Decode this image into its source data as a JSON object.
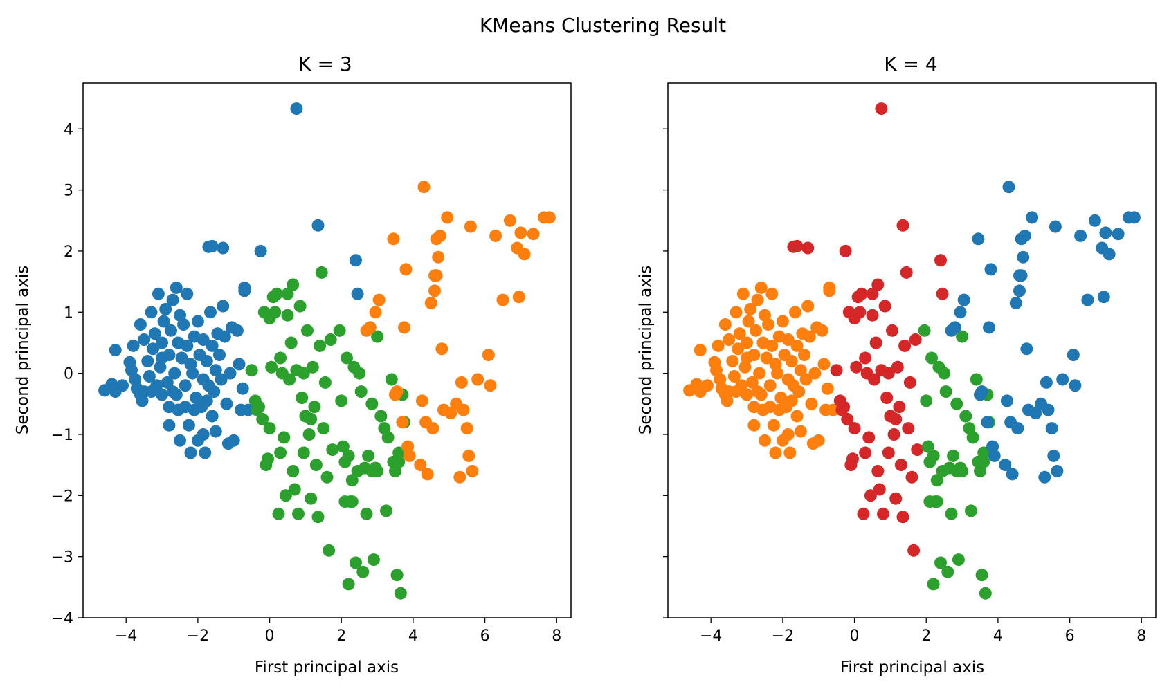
{
  "chart_data": {
    "type": "scatter",
    "title": "KMeans Clustering Result",
    "colors": {
      "C0": "#1f77b4",
      "C1": "#ff7f0e",
      "C2": "#2ca02c",
      "C3": "#d62728"
    },
    "xlim": [
      -5.2,
      8.4
    ],
    "ylim": [
      -4,
      4.75
    ],
    "xticks": [
      -4,
      -2,
      0,
      2,
      4,
      6,
      8
    ],
    "yticks": [
      -4,
      -3,
      -2,
      -1,
      0,
      1,
      2,
      3,
      4
    ],
    "xticklabels": [
      "−4",
      "−2",
      "0",
      "2",
      "4",
      "6",
      "8"
    ],
    "yticklabels": [
      "−4",
      "−3",
      "−2",
      "−1",
      "0",
      "1",
      "2",
      "3",
      "4"
    ],
    "xlabel": "First principal axis",
    "ylabel": "Second principal axis",
    "points": [
      [
        -4.6,
        -0.28,
        0,
        1
      ],
      [
        -4.4,
        -0.18,
        0,
        1
      ],
      [
        -4.3,
        -0.3,
        0,
        1
      ],
      [
        -4.3,
        0.38,
        0,
        1
      ],
      [
        -4.1,
        -0.2,
        0,
        1
      ],
      [
        -3.9,
        0.18,
        0,
        1
      ],
      [
        -3.85,
        0.05,
        0,
        1
      ],
      [
        -3.8,
        0.45,
        0,
        1
      ],
      [
        -3.75,
        -0.1,
        0,
        1
      ],
      [
        -3.7,
        -0.25,
        0,
        1
      ],
      [
        -3.6,
        0.8,
        0,
        1
      ],
      [
        -3.55,
        -0.45,
        0,
        1
      ],
      [
        -3.5,
        -0.3,
        0,
        1
      ],
      [
        -3.5,
        0.55,
        0,
        1
      ],
      [
        -3.4,
        0.2,
        0,
        1
      ],
      [
        -3.35,
        -0.05,
        0,
        1
      ],
      [
        -3.3,
        1.0,
        0,
        1
      ],
      [
        -3.25,
        0.4,
        0,
        1
      ],
      [
        -3.2,
        0.65,
        0,
        1
      ],
      [
        -3.15,
        -0.2,
        0,
        1
      ],
      [
        -3.1,
        1.3,
        0,
        1
      ],
      [
        -3.05,
        0.1,
        0,
        1
      ],
      [
        -3.0,
        0.5,
        0,
        1
      ],
      [
        -3.0,
        -0.35,
        0,
        1
      ],
      [
        -2.95,
        0.85,
        0,
        1
      ],
      [
        -2.9,
        1.05,
        0,
        1
      ],
      [
        -2.85,
        -0.15,
        0,
        1
      ],
      [
        -2.8,
        0.3,
        0,
        1
      ],
      [
        -2.8,
        -0.85,
        0,
        1
      ],
      [
        -2.75,
        0.7,
        0,
        1
      ],
      [
        -2.7,
        -0.3,
        0,
        1
      ],
      [
        -2.7,
        1.2,
        0,
        1
      ],
      [
        -2.65,
        0.0,
        0,
        1
      ],
      [
        -2.6,
        1.4,
        0,
        1
      ],
      [
        -2.55,
        0.5,
        0,
        1
      ],
      [
        -2.55,
        -0.6,
        0,
        1
      ],
      [
        -2.5,
        0.95,
        0,
        1
      ],
      [
        -2.5,
        -1.1,
        0,
        1
      ],
      [
        -2.45,
        0.25,
        0,
        1
      ],
      [
        -2.4,
        0.8,
        0,
        1
      ],
      [
        -2.35,
        -0.2,
        0,
        1
      ],
      [
        -2.3,
        1.3,
        0,
        1
      ],
      [
        -2.3,
        0.45,
        0,
        1
      ],
      [
        -2.25,
        -0.85,
        0,
        1
      ],
      [
        -2.2,
        -1.3,
        0,
        1
      ],
      [
        -2.15,
        0.0,
        0,
        1
      ],
      [
        -2.1,
        0.6,
        0,
        1
      ],
      [
        -2.05,
        -0.4,
        0,
        1
      ],
      [
        -2.0,
        0.85,
        0,
        1
      ],
      [
        -2.0,
        -1.1,
        0,
        1
      ],
      [
        -1.95,
        0.3,
        0,
        1
      ],
      [
        -1.9,
        -0.55,
        0,
        1
      ],
      [
        -1.85,
        0.55,
        0,
        1
      ],
      [
        -1.85,
        -1.0,
        0,
        1
      ],
      [
        -1.8,
        -1.3,
        0,
        1
      ],
      [
        -1.75,
        0.2,
        0,
        1
      ],
      [
        -1.7,
        -0.2,
        0,
        1
      ],
      [
        -1.65,
        1.0,
        0,
        1
      ],
      [
        -1.6,
        0.45,
        0,
        1
      ],
      [
        -1.6,
        -0.7,
        0,
        1
      ],
      [
        -1.55,
        -0.3,
        0,
        1
      ],
      [
        -1.5,
        0.05,
        0,
        1
      ],
      [
        -1.5,
        -0.95,
        0,
        1
      ],
      [
        -1.45,
        0.65,
        0,
        1
      ],
      [
        -1.4,
        0.3,
        0,
        1
      ],
      [
        -1.35,
        -0.1,
        0,
        1
      ],
      [
        -1.3,
        1.1,
        0,
        1
      ],
      [
        -1.25,
        0.6,
        0,
        1
      ],
      [
        -1.2,
        -0.5,
        0,
        1
      ],
      [
        -1.15,
        -1.15,
        0,
        1
      ],
      [
        -1.1,
        0.0,
        0,
        1
      ],
      [
        -1.05,
        0.75,
        0,
        1
      ],
      [
        -1.0,
        -1.1,
        0,
        1
      ],
      [
        -0.9,
        0.7,
        0,
        1
      ],
      [
        -0.85,
        0.15,
        0,
        1
      ],
      [
        -0.8,
        -0.6,
        0,
        1
      ],
      [
        -0.75,
        -0.25,
        0,
        1
      ],
      [
        -0.7,
        1.4,
        0,
        1
      ],
      [
        -0.7,
        1.35,
        0,
        1
      ],
      [
        -0.6,
        -0.6,
        0,
        1
      ],
      [
        -1.85,
        -0.1,
        0,
        1
      ],
      [
        -2.8,
        -0.55,
        0,
        1
      ],
      [
        -3.6,
        -0.35,
        0,
        1
      ],
      [
        -2.2,
        0.15,
        0,
        1
      ],
      [
        -2.6,
        -0.35,
        0,
        1
      ],
      [
        -3.0,
        0.25,
        0,
        1
      ],
      [
        -2.35,
        -0.55,
        0,
        1
      ],
      [
        -1.75,
        -0.45,
        0,
        1
      ],
      [
        -2.1,
        -0.6,
        0,
        1
      ],
      [
        -3.3,
        -0.3,
        0,
        1
      ],
      [
        -1.7,
        2.07,
        0,
        3
      ],
      [
        -1.6,
        2.08,
        0,
        3
      ],
      [
        -1.3,
        2.05,
        0,
        3
      ],
      [
        -0.25,
        2.0,
        0,
        3
      ],
      [
        -0.5,
        0.05,
        2,
        3
      ],
      [
        -0.4,
        -0.45,
        2,
        3
      ],
      [
        -0.35,
        -0.6,
        2,
        3
      ],
      [
        -0.3,
        -0.55,
        2,
        3
      ],
      [
        -0.2,
        -0.75,
        2,
        3
      ],
      [
        -0.1,
        -1.5,
        2,
        3
      ],
      [
        -0.05,
        -1.4,
        2,
        3
      ],
      [
        0.0,
        0.9,
        2,
        3
      ],
      [
        0.1,
        1.25,
        2,
        3
      ],
      [
        0.15,
        1.0,
        2,
        3
      ],
      [
        0.3,
        -1.3,
        2,
        3
      ],
      [
        0.35,
        0.0,
        2,
        3
      ],
      [
        0.4,
        -1.05,
        2,
        3
      ],
      [
        0.45,
        -2.0,
        2,
        3
      ],
      [
        0.5,
        1.3,
        2,
        3
      ],
      [
        0.55,
        -0.1,
        2,
        3
      ],
      [
        0.6,
        0.5,
        2,
        3
      ],
      [
        0.65,
        1.45,
        2,
        3
      ],
      [
        0.7,
        -1.9,
        2,
        3
      ],
      [
        0.75,
        0.05,
        2,
        3
      ],
      [
        0.8,
        -2.3,
        2,
        3
      ],
      [
        0.85,
        1.1,
        2,
        3
      ],
      [
        0.9,
        -0.4,
        2,
        3
      ],
      [
        0.95,
        -1.3,
        2,
        3
      ],
      [
        1.0,
        -0.7,
        2,
        3
      ],
      [
        1.05,
        0.7,
        2,
        3
      ],
      [
        1.1,
        -1.0,
        2,
        3
      ],
      [
        1.15,
        -2.05,
        2,
        3
      ],
      [
        1.2,
        0.1,
        2,
        3
      ],
      [
        1.25,
        -0.55,
        2,
        3
      ],
      [
        1.3,
        -1.5,
        2,
        3
      ],
      [
        1.35,
        -2.35,
        2,
        3
      ],
      [
        1.4,
        0.45,
        2,
        3
      ],
      [
        1.45,
        1.65,
        2,
        3
      ],
      [
        1.5,
        -0.9,
        2,
        3
      ],
      [
        1.55,
        -0.15,
        2,
        3
      ],
      [
        1.6,
        -1.7,
        2,
        3
      ],
      [
        1.65,
        -2.9,
        2,
        3
      ],
      [
        1.7,
        0.55,
        2,
        3
      ],
      [
        1.75,
        -1.25,
        2,
        3
      ],
      [
        0.2,
        1.3,
        2,
        3
      ],
      [
        0.25,
        -2.3,
        2,
        3
      ],
      [
        0.0,
        -0.9,
        2,
        3
      ],
      [
        -0.15,
        1.0,
        2,
        3
      ],
      [
        0.05,
        0.1,
        2,
        3
      ],
      [
        0.5,
        0.95,
        2,
        3
      ],
      [
        0.3,
        0.25,
        2,
        3
      ],
      [
        0.95,
        0.0,
        2,
        3
      ],
      [
        1.15,
        -0.75,
        2,
        3
      ],
      [
        0.65,
        -1.6,
        2,
        3
      ],
      [
        0.75,
        4.33,
        0,
        3
      ],
      [
        1.35,
        2.42,
        0,
        3
      ],
      [
        2.4,
        1.85,
        0,
        3
      ],
      [
        2.45,
        1.3,
        0,
        3
      ],
      [
        1.95,
        0.7,
        2,
        2
      ],
      [
        2.0,
        -0.45,
        2,
        2
      ],
      [
        2.05,
        -1.2,
        2,
        2
      ],
      [
        2.1,
        -1.45,
        2,
        2
      ],
      [
        2.15,
        0.25,
        2,
        2
      ],
      [
        2.2,
        -1.35,
        2,
        2
      ],
      [
        2.25,
        -2.1,
        2,
        2
      ],
      [
        2.3,
        -1.75,
        2,
        2
      ],
      [
        2.35,
        0.1,
        2,
        2
      ],
      [
        2.4,
        -3.1,
        2,
        2
      ],
      [
        2.45,
        -1.6,
        2,
        2
      ],
      [
        2.5,
        0.0,
        2,
        2
      ],
      [
        2.55,
        -0.3,
        2,
        2
      ],
      [
        2.6,
        -3.25,
        2,
        2
      ],
      [
        2.65,
        -1.55,
        2,
        2
      ],
      [
        2.7,
        -2.3,
        2,
        2
      ],
      [
        2.75,
        -1.35,
        2,
        2
      ],
      [
        2.8,
        0.75,
        2,
        2
      ],
      [
        2.85,
        -0.5,
        2,
        2
      ],
      [
        2.9,
        -3.05,
        2,
        2
      ],
      [
        2.95,
        -1.55,
        2,
        2
      ],
      [
        3.0,
        0.6,
        2,
        2
      ],
      [
        3.1,
        -0.7,
        2,
        2
      ],
      [
        3.2,
        -0.9,
        2,
        2
      ],
      [
        3.25,
        -2.25,
        2,
        2
      ],
      [
        3.3,
        -1.05,
        2,
        2
      ],
      [
        3.4,
        -0.1,
        2,
        2
      ],
      [
        3.5,
        -1.6,
        2,
        2
      ],
      [
        3.55,
        -3.3,
        2,
        2
      ],
      [
        3.6,
        -1.45,
        2,
        2
      ],
      [
        3.65,
        -3.6,
        2,
        2
      ],
      [
        3.7,
        -0.35,
        2,
        2
      ],
      [
        3.75,
        -0.8,
        2,
        2
      ],
      [
        2.1,
        -2.1,
        2,
        2
      ],
      [
        2.2,
        -3.45,
        2,
        2
      ],
      [
        2.3,
        -2.1,
        2,
        2
      ],
      [
        3.0,
        -1.6,
        2,
        2
      ],
      [
        2.85,
        -1.6,
        2,
        2
      ],
      [
        3.45,
        -1.45,
        2,
        2
      ],
      [
        3.6,
        -1.3,
        2,
        2
      ],
      [
        2.7,
        0.7,
        1,
        0
      ],
      [
        2.8,
        0.75,
        1,
        0
      ],
      [
        2.95,
        1.0,
        1,
        0
      ],
      [
        3.05,
        1.2,
        1,
        0
      ],
      [
        3.45,
        2.2,
        1,
        0
      ],
      [
        3.5,
        -0.35,
        1,
        0
      ],
      [
        3.55,
        -0.3,
        1,
        0
      ],
      [
        3.7,
        -0.8,
        1,
        0
      ],
      [
        3.75,
        0.75,
        1,
        0
      ],
      [
        3.8,
        1.7,
        1,
        0
      ],
      [
        3.85,
        -1.2,
        1,
        0
      ],
      [
        3.9,
        -1.35,
        1,
        0
      ],
      [
        4.2,
        -1.5,
        1,
        0
      ],
      [
        4.25,
        -0.45,
        1,
        0
      ],
      [
        4.3,
        3.05,
        1,
        0
      ],
      [
        4.35,
        -0.8,
        1,
        0
      ],
      [
        4.4,
        -1.65,
        1,
        0
      ],
      [
        4.5,
        1.15,
        1,
        0
      ],
      [
        4.55,
        -0.9,
        1,
        0
      ],
      [
        4.6,
        1.35,
        1,
        0
      ],
      [
        4.6,
        1.6,
        1,
        0
      ],
      [
        4.65,
        2.2,
        1,
        0
      ],
      [
        4.7,
        1.9,
        1,
        0
      ],
      [
        4.75,
        2.25,
        1,
        0
      ],
      [
        4.8,
        0.4,
        1,
        0
      ],
      [
        4.85,
        -0.6,
        1,
        0
      ],
      [
        4.95,
        2.55,
        1,
        0
      ],
      [
        5.05,
        -0.65,
        1,
        0
      ],
      [
        5.2,
        -0.5,
        1,
        0
      ],
      [
        5.3,
        -1.7,
        1,
        0
      ],
      [
        5.35,
        -0.15,
        1,
        0
      ],
      [
        5.4,
        -0.6,
        1,
        0
      ],
      [
        5.5,
        -0.9,
        1,
        0
      ],
      [
        5.55,
        -1.35,
        1,
        0
      ],
      [
        5.6,
        2.4,
        1,
        0
      ],
      [
        5.65,
        -1.6,
        1,
        0
      ],
      [
        5.8,
        -0.1,
        1,
        0
      ],
      [
        6.1,
        0.3,
        1,
        0
      ],
      [
        6.15,
        -0.2,
        1,
        0
      ],
      [
        6.3,
        2.25,
        1,
        0
      ],
      [
        6.5,
        1.2,
        1,
        0
      ],
      [
        6.7,
        2.5,
        1,
        0
      ],
      [
        6.9,
        2.05,
        1,
        0
      ],
      [
        6.95,
        1.25,
        1,
        0
      ],
      [
        7.0,
        2.3,
        1,
        0
      ],
      [
        7.1,
        1.95,
        1,
        0
      ],
      [
        7.35,
        2.28,
        1,
        0
      ],
      [
        7.65,
        2.55,
        1,
        0
      ],
      [
        7.8,
        2.55,
        1,
        0
      ],
      [
        4.65,
        1.6,
        1,
        0
      ]
    ]
  },
  "panels": [
    {
      "title": "K = 3",
      "xlabel": "First principal axis",
      "ylabel": "Second principal axis"
    },
    {
      "title": "K = 4",
      "xlabel": "First principal axis",
      "ylabel": "Second principal axis"
    }
  ]
}
